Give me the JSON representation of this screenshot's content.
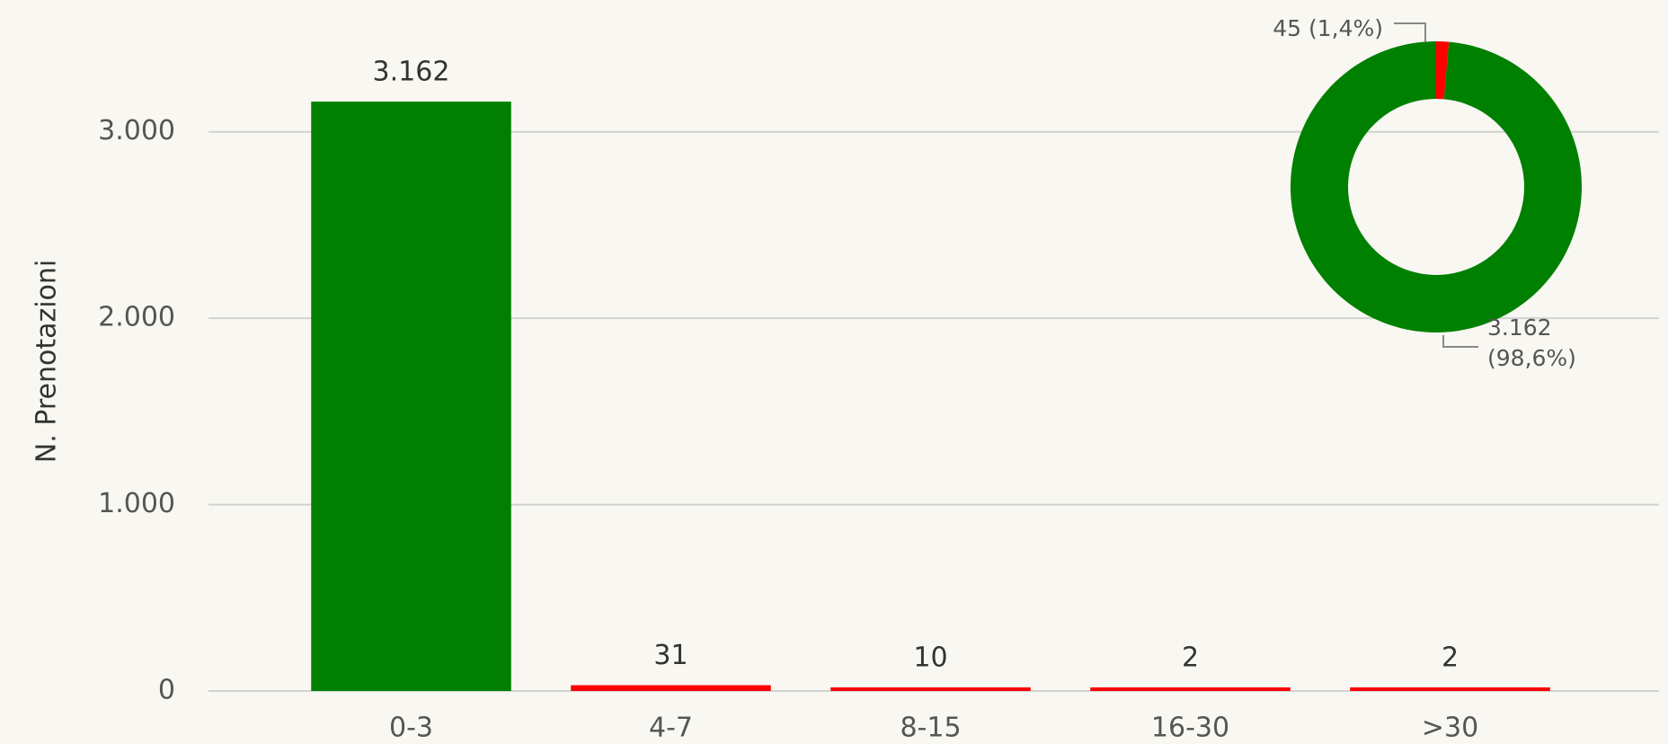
{
  "chart_data": [
    {
      "type": "bar",
      "y_label": "N. Prenotazioni",
      "categories": [
        "0-3",
        "4-7",
        "8-15",
        "16-30",
        ">30"
      ],
      "values": [
        3162,
        31,
        10,
        2,
        2
      ],
      "value_labels": [
        "3.162",
        "31",
        "10",
        "2",
        "2"
      ],
      "colors": [
        "#008000",
        "#ff0000",
        "#ff0000",
        "#ff0000",
        "#ff0000"
      ],
      "ylim": [
        0,
        3500
      ],
      "yticks": [
        0,
        {
          "value": 1000,
          "label": "1.000"
        },
        {
          "value": 2000,
          "label": "2.000"
        },
        {
          "value": 3000,
          "label": "3.000"
        }
      ],
      "grid": true
    },
    {
      "type": "pie",
      "donut": true,
      "values": [
        45,
        3162
      ],
      "value_labels": [
        "45 (1,4%)",
        "3.162 (98,6%)"
      ],
      "colors": [
        "#ff0000",
        "#008000"
      ]
    }
  ]
}
